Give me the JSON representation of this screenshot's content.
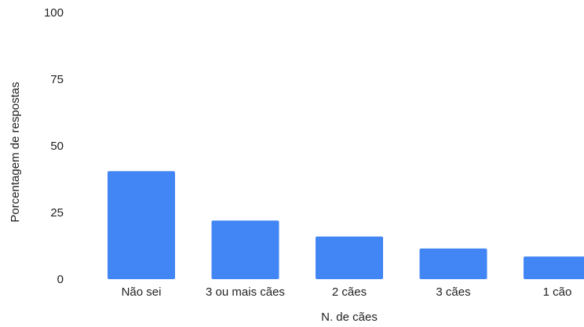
{
  "chart_data": {
    "type": "bar",
    "title": "",
    "xlabel": "N. de cães",
    "ylabel": "Porcentagem de respostas",
    "categories": [
      "Não sei",
      "3 ou mais cães",
      "2 cães",
      "3 cães",
      "1 cão"
    ],
    "values": [
      40.5,
      22,
      16,
      11.5,
      8.5
    ],
    "ylim": [
      0,
      100
    ],
    "yticks": [
      0,
      25,
      50,
      75,
      100
    ],
    "grid": false,
    "legend": "none",
    "bar_color": "#4285f4"
  }
}
